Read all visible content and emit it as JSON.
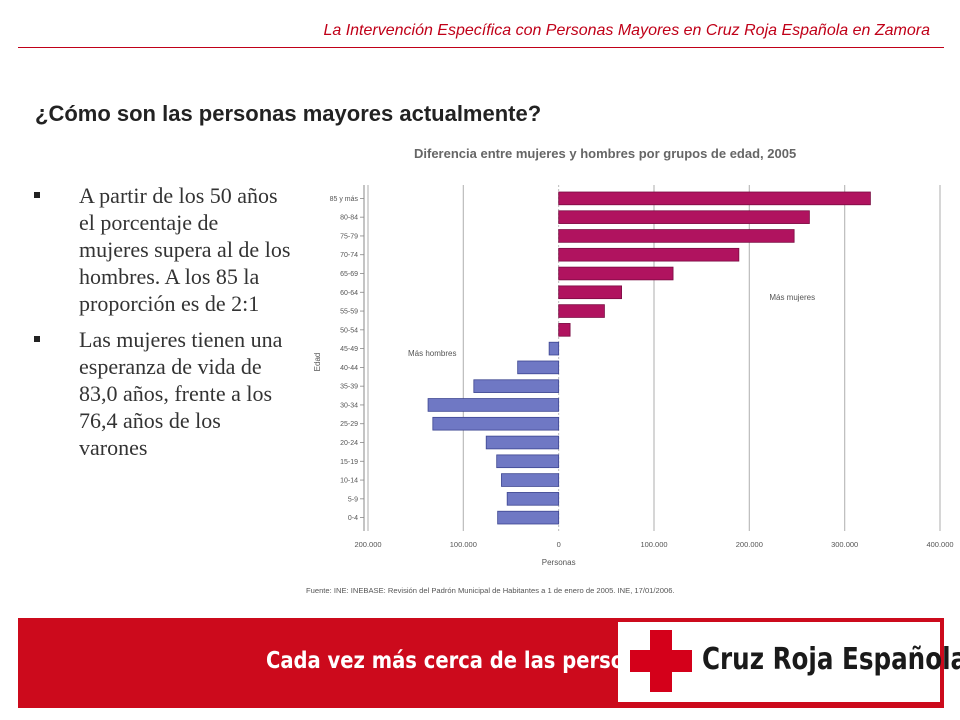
{
  "header": {
    "title": "La Intervención Específica con Personas Mayores  en Cruz Roja Española en Zamora"
  },
  "section": {
    "title": "¿Cómo son las personas mayores actualmente?"
  },
  "bullets": [
    "A partir de los 50 años el porcentaje de mujeres supera al de los hombres. A los 85 la proporción es de 2:1",
    "Las mujeres tienen una esperanza de vida de 83,0 años, frente a los 76,4 años de los varones"
  ],
  "chart_data": {
    "type": "bar",
    "orientation": "horizontal",
    "title": "Diferencia entre mujeres y hombres por grupos de edad, 2005",
    "xlabel": "Personas",
    "ylabel": "Edad",
    "categories": [
      "85 y más",
      "80-84",
      "75-79",
      "70-74",
      "65-69",
      "60-64",
      "55-59",
      "50-54",
      "45-49",
      "40-44",
      "35-39",
      "30-34",
      "25-29",
      "20-24",
      "15-19",
      "10-14",
      "5-9",
      "0-4"
    ],
    "values": [
      327000,
      263000,
      247000,
      189000,
      120000,
      66000,
      48000,
      12000,
      -10000,
      -43000,
      -89000,
      -137000,
      -132000,
      -76000,
      -65000,
      -60000,
      -54000,
      -64000
    ],
    "xlim": [
      -200000,
      400000
    ],
    "xticks": [
      -200000,
      -100000,
      0,
      100000,
      200000,
      300000,
      400000
    ],
    "xtick_labels": [
      "200.000",
      "100.000",
      "0",
      "100.000",
      "200.000",
      "300.000",
      "400.000"
    ],
    "annotations": {
      "positive": "Más mujeres",
      "negative": "Más hombres"
    },
    "source": "Fuente: INE: INEBASE: Revisión del Padrón Municipal de Habitantes a 1 de enero de 2005. INE, 17/01/2006.",
    "colors": {
      "positive": "#b0135f",
      "negative": "#6f78c4",
      "grid": "#bbbbbb",
      "axis": "#888888",
      "text": "#555555"
    },
    "grid": true
  },
  "banner": {
    "slogan": "Cada vez más cerca de las personas",
    "logo_text": "Cruz Roja Española",
    "color": "#cc0a1c"
  }
}
